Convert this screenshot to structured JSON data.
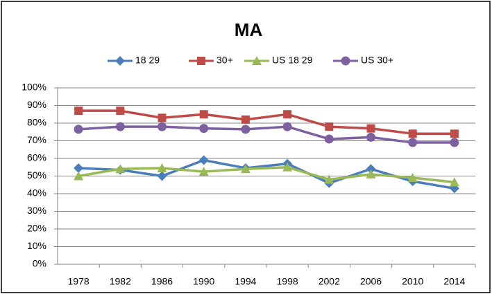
{
  "chart_data": {
    "type": "line",
    "title": "MA",
    "categories": [
      "1978",
      "1982",
      "1986",
      "1990",
      "1994",
      "1998",
      "2002",
      "2006",
      "2010",
      "2014"
    ],
    "series": [
      {
        "name": "18 29",
        "color": "#4a7ebb",
        "marker": "diamond",
        "values": [
          54.5,
          53.5,
          50,
          59,
          54.5,
          57,
          46,
          54,
          47,
          43
        ]
      },
      {
        "name": "30+",
        "color": "#be4b48",
        "marker": "square",
        "values": [
          87,
          87,
          83,
          85,
          82,
          85,
          78,
          77,
          74,
          74
        ]
      },
      {
        "name": "US 18 29",
        "color": "#98b954",
        "marker": "triangle",
        "values": [
          50,
          54,
          54.5,
          52.5,
          54,
          55,
          48,
          51,
          49,
          46.5
        ]
      },
      {
        "name": "US 30+",
        "color": "#7d60a0",
        "marker": "circle",
        "values": [
          76.5,
          78,
          78,
          77,
          76.5,
          78,
          71,
          72,
          69,
          69
        ]
      }
    ],
    "ylim": [
      0,
      100
    ],
    "yticks": [
      {
        "value": 0,
        "label": "0%"
      },
      {
        "value": 10,
        "label": "10%"
      },
      {
        "value": 20,
        "label": "20%"
      },
      {
        "value": 30,
        "label": "30%"
      },
      {
        "value": 40,
        "label": "40%"
      },
      {
        "value": 50,
        "label": "50%"
      },
      {
        "value": 60,
        "label": "60%"
      },
      {
        "value": 70,
        "label": "70%"
      },
      {
        "value": 80,
        "label": "80%"
      },
      {
        "value": 90,
        "label": "90%"
      },
      {
        "value": 100,
        "label": "100%"
      }
    ],
    "grid": true,
    "legend": "top"
  }
}
